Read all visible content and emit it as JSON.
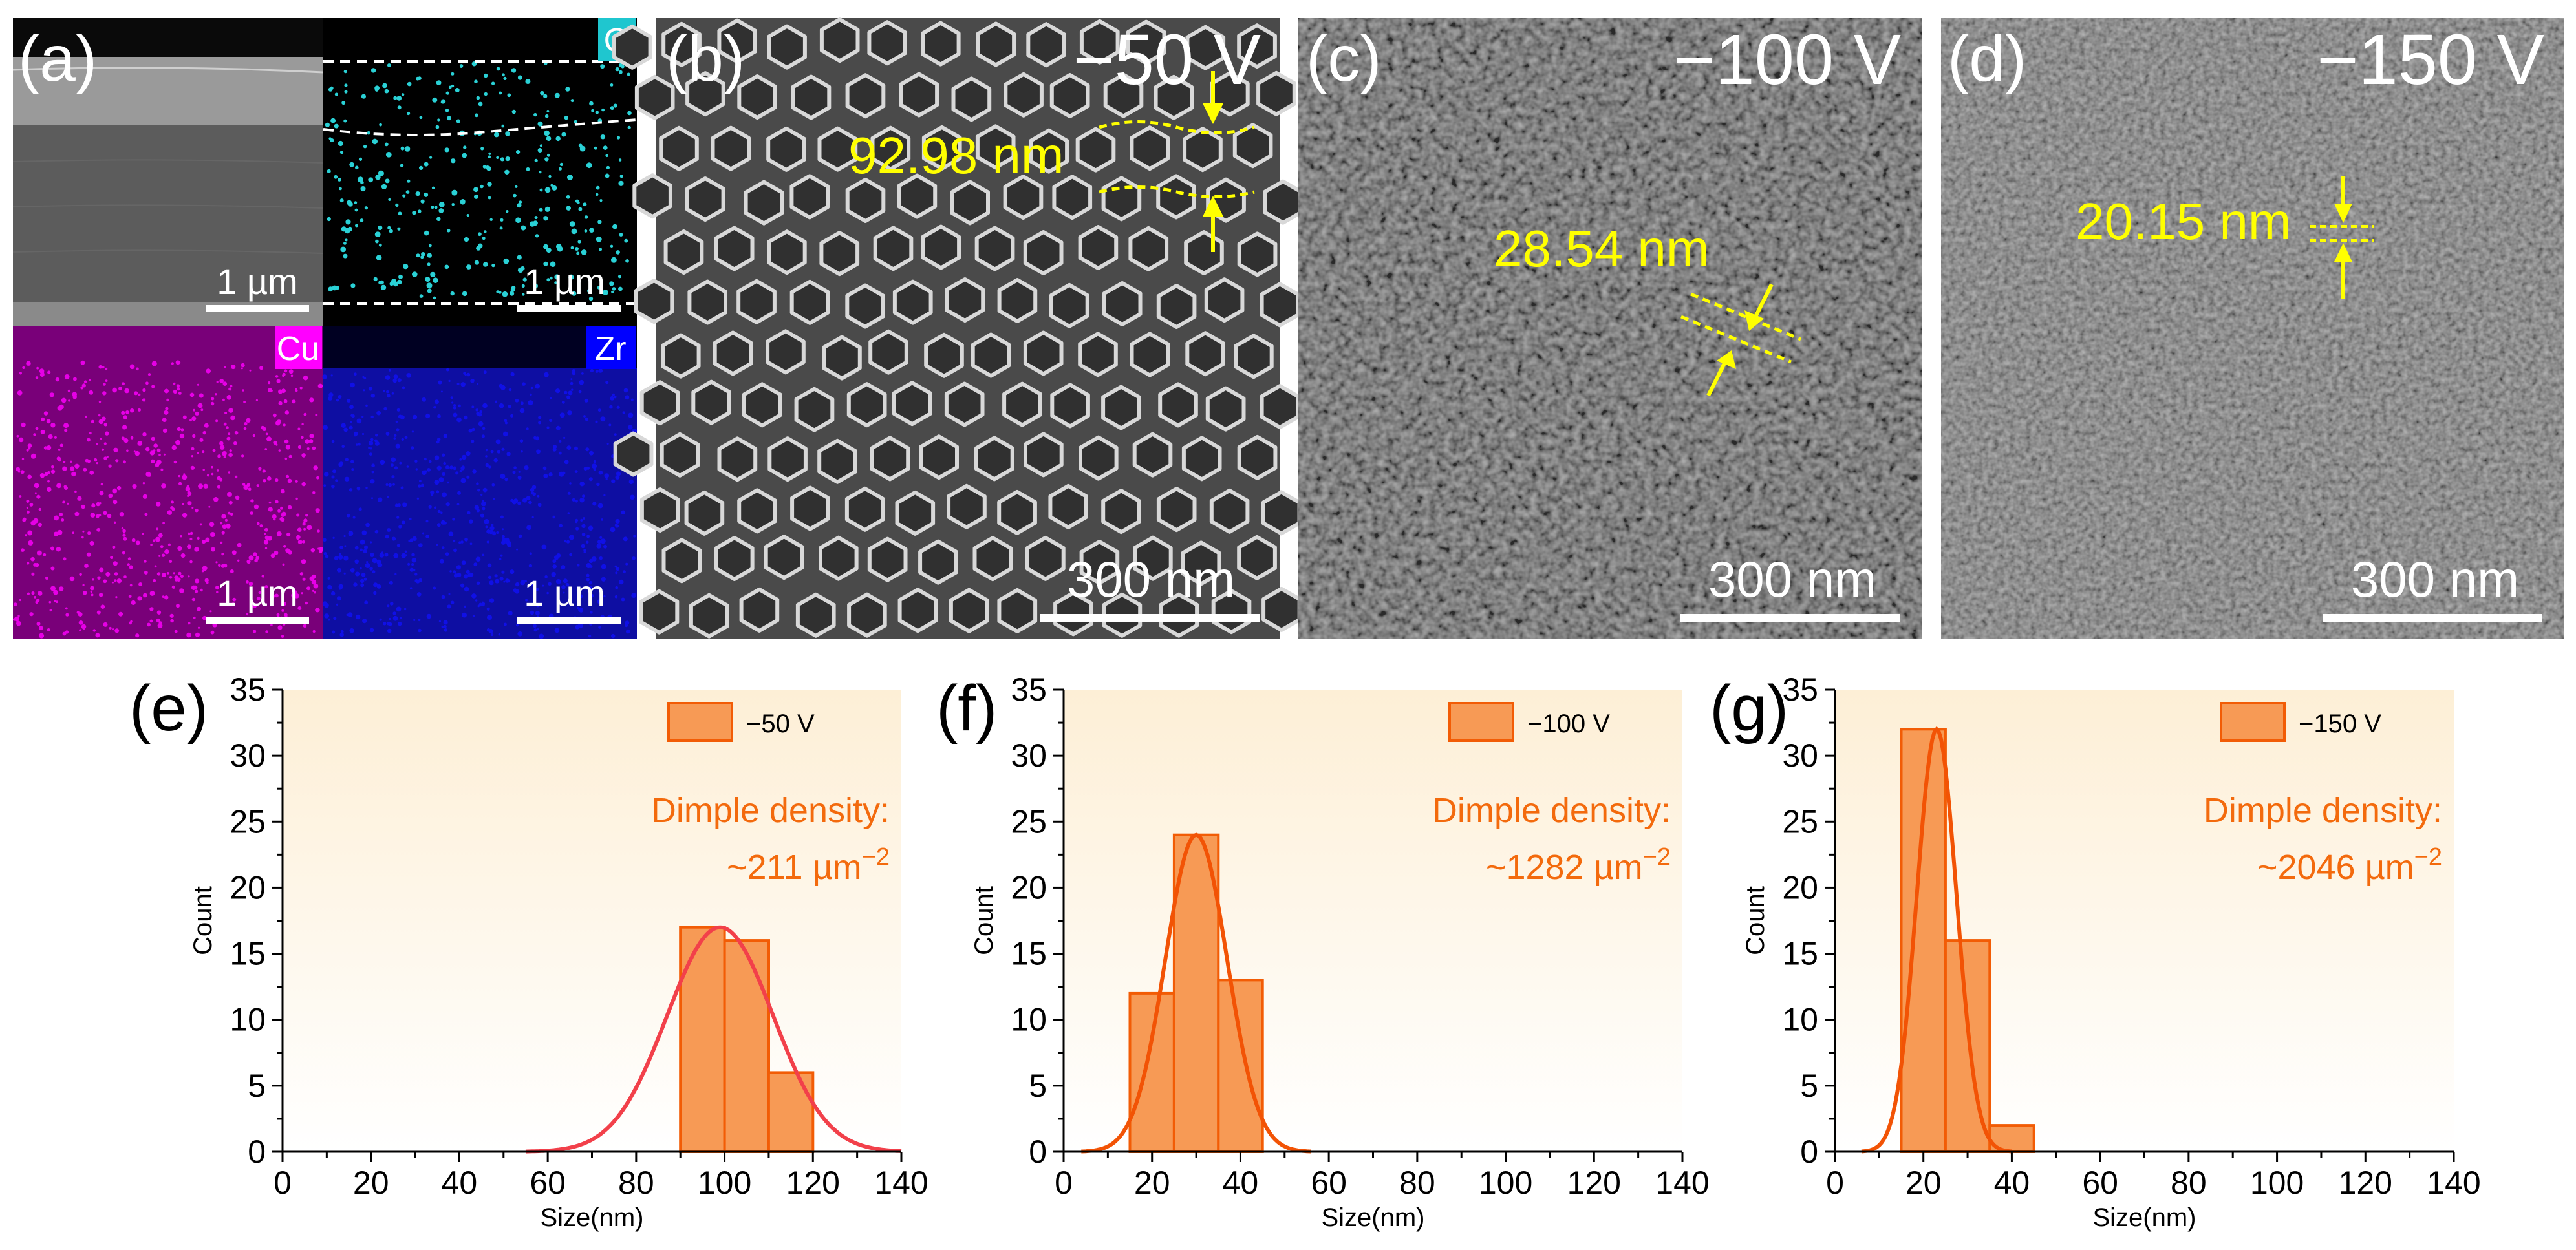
{
  "colors": {
    "bar_fill": "#f79a55",
    "bar_stroke": "#f25c05",
    "annot_text": "#f36a0d",
    "curve_e": "#f2404a",
    "curve_fg": "#f25305",
    "bg_top": "#fdefd6",
    "sem_label": "#ffffff",
    "measure": "#ffff00",
    "badge_o": "#1fc6cf",
    "badge_cu": "#ff00ff",
    "badge_zr": "#0000ff",
    "cu_dots": "#e600e6",
    "zr_dots": "#1010e6",
    "o_dots": "#2ad1d6"
  },
  "panels": {
    "a": {
      "label": "(a)",
      "tiles": [
        {
          "badge": "",
          "scale": "1 µm"
        },
        {
          "badge": "O",
          "scale": "1 µm"
        },
        {
          "badge": "Cu",
          "scale": "1 µm"
        },
        {
          "badge": "Zr",
          "scale": "1 µm"
        }
      ]
    },
    "b": {
      "label": "(b)",
      "voltage": "−50 V",
      "scale": "300 nm",
      "measure": "92.98 nm"
    },
    "c": {
      "label": "(c)",
      "voltage": "−100 V",
      "scale": "300 nm",
      "measure": "28.54 nm"
    },
    "d": {
      "label": "(d)",
      "voltage": "−150 V",
      "scale": "300 nm",
      "measure": "20.15 nm"
    }
  },
  "chart_data": [
    {
      "id": "e",
      "type": "bar",
      "panel_label": "(e)",
      "xlabel": "Size(nm)",
      "ylabel": "Count",
      "xlim": [
        0,
        140
      ],
      "ylim": [
        0,
        35
      ],
      "xticks": [
        "0",
        "20",
        "40",
        "60",
        "80",
        "100",
        "120",
        "140"
      ],
      "yticks": [
        "0",
        "5",
        "10",
        "15",
        "20",
        "25",
        "30",
        "35"
      ],
      "legend": "−50 V",
      "legend_position": "top-right",
      "annotation_line1": "Dimple density:",
      "annotation_line2": "~211 µm",
      "annotation_exp": "−2",
      "bin_width": 10,
      "bins": [
        {
          "x0": 90,
          "count": 17
        },
        {
          "x0": 100,
          "count": 16
        },
        {
          "x0": 110,
          "count": 6
        }
      ],
      "fit": {
        "type": "gaussian",
        "mean": 99,
        "sigma": 12,
        "peak": 17,
        "color": "curve_e"
      }
    },
    {
      "id": "f",
      "type": "bar",
      "panel_label": "(f)",
      "xlabel": "Size(nm)",
      "ylabel": "Count",
      "xlim": [
        0,
        140
      ],
      "ylim": [
        0,
        35
      ],
      "xticks": [
        "0",
        "20",
        "40",
        "60",
        "80",
        "100",
        "120",
        "140"
      ],
      "yticks": [
        "0",
        "5",
        "10",
        "15",
        "20",
        "25",
        "30",
        "35"
      ],
      "legend": "−100 V",
      "legend_position": "top-right",
      "annotation_line1": "Dimple density:",
      "annotation_line2": "~1282 µm",
      "annotation_exp": "−2",
      "bin_width": 10,
      "bins": [
        {
          "x0": 15,
          "count": 12
        },
        {
          "x0": 25,
          "count": 24
        },
        {
          "x0": 35,
          "count": 13
        }
      ],
      "fit": {
        "type": "gaussian",
        "mean": 30,
        "sigma": 7,
        "peak": 24,
        "color": "curve_fg"
      }
    },
    {
      "id": "g",
      "type": "bar",
      "panel_label": "(g)",
      "xlabel": "Size(nm)",
      "ylabel": "Count",
      "xlim": [
        0,
        140
      ],
      "ylim": [
        0,
        35
      ],
      "xticks": [
        "0",
        "20",
        "40",
        "60",
        "80",
        "100",
        "120",
        "140"
      ],
      "yticks": [
        "0",
        "5",
        "10",
        "15",
        "20",
        "25",
        "30",
        "35"
      ],
      "legend": "−150 V",
      "legend_position": "top-right",
      "annotation_line1": "Dimple density:",
      "annotation_line2": "~2046 µm",
      "annotation_exp": "−2",
      "bin_width": 10,
      "bins": [
        {
          "x0": 15,
          "count": 32
        },
        {
          "x0": 25,
          "count": 16
        },
        {
          "x0": 35,
          "count": 2
        }
      ],
      "fit": {
        "type": "gaussian",
        "mean": 23,
        "sigma": 4.5,
        "peak": 32,
        "color": "curve_fg"
      }
    }
  ]
}
